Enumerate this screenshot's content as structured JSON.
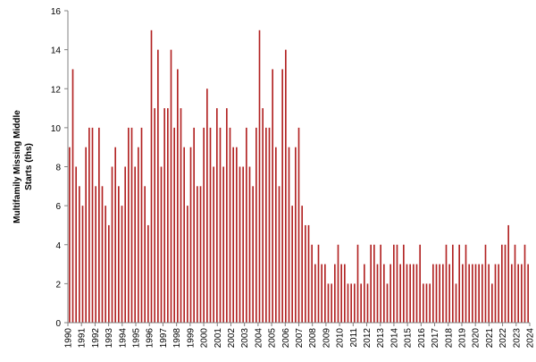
{
  "chart_data": {
    "type": "bar",
    "title": "",
    "xlabel": "",
    "ylabel_lines": [
      "Multifamily Missing Middle",
      "Starts (ths)"
    ],
    "ylim": [
      0,
      16
    ],
    "yticks": [
      0,
      2,
      4,
      6,
      8,
      10,
      12,
      14,
      16
    ],
    "x_start_year": 1990,
    "x_tick_labels": [
      "1990",
      "1991",
      "1992",
      "1993",
      "1994",
      "1995",
      "1996",
      "1997",
      "1998",
      "1999",
      "2000",
      "2001",
      "2002",
      "2003",
      "2004",
      "2005",
      "2006",
      "2007",
      "2008",
      "2009",
      "2010",
      "2011",
      "2012",
      "2013",
      "2014",
      "2015",
      "2016",
      "2017",
      "2018",
      "2019",
      "2020",
      "2021",
      "2022",
      "2023",
      "2024"
    ],
    "bar_color": "#b22222",
    "grid": false,
    "legend": "none",
    "values": [
      9,
      13,
      8,
      7,
      6,
      9,
      10,
      10,
      7,
      10,
      7,
      6,
      5,
      8,
      9,
      7,
      6,
      8,
      10,
      10,
      8,
      9,
      10,
      7,
      5,
      15,
      11,
      14,
      8,
      11,
      11,
      14,
      10,
      13,
      11,
      9,
      6,
      9,
      10,
      7,
      7,
      10,
      12,
      10,
      8,
      11,
      10,
      8,
      11,
      10,
      9,
      9,
      8,
      8,
      10,
      8,
      7,
      10,
      15,
      11,
      10,
      10,
      13,
      9,
      7,
      13,
      14,
      9,
      6,
      9,
      10,
      6,
      5,
      5,
      4,
      3,
      4,
      3,
      3,
      2,
      2,
      3,
      4,
      3,
      3,
      2,
      2,
      2,
      4,
      2,
      3,
      2,
      4,
      4,
      3,
      4,
      3,
      2,
      3,
      4,
      4,
      3,
      4,
      3,
      3,
      3,
      3,
      4,
      2,
      2,
      2,
      3,
      3,
      3,
      3,
      4,
      3,
      4,
      2,
      4,
      3,
      4,
      3,
      3,
      3,
      3,
      3,
      4,
      3,
      2,
      3,
      3,
      4,
      4,
      5,
      3,
      4,
      3,
      3,
      4,
      3
    ]
  }
}
